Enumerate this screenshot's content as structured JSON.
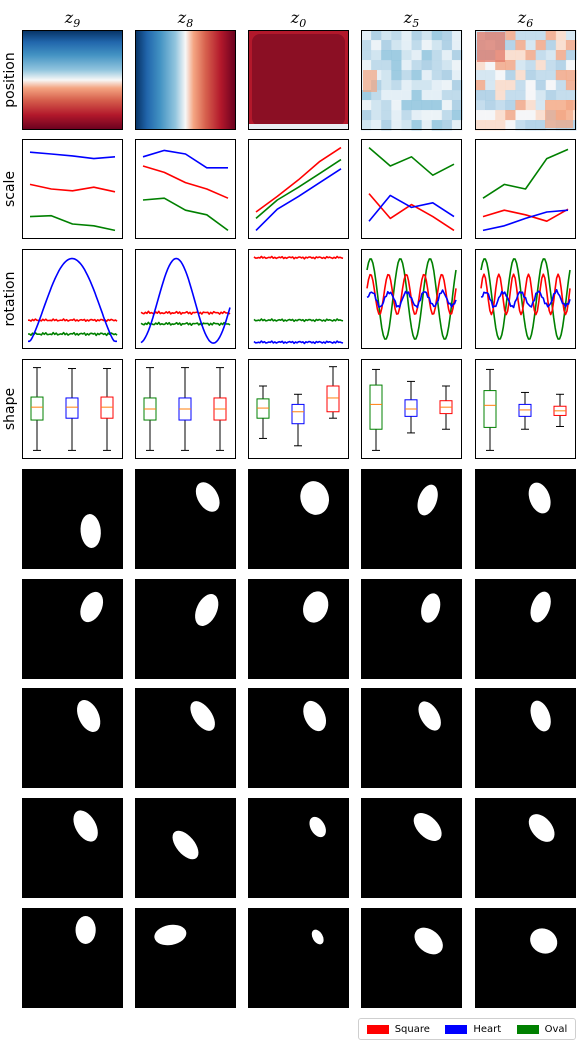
{
  "chart_data": {
    "type": "grid",
    "columns": [
      {
        "latent": "z",
        "subscript": "9"
      },
      {
        "latent": "z",
        "subscript": "8"
      },
      {
        "latent": "z",
        "subscript": "0"
      },
      {
        "latent": "z",
        "subscript": "5"
      },
      {
        "latent": "z",
        "subscript": "6"
      }
    ],
    "row_labels": [
      "position",
      "scale",
      "rotation",
      "shape"
    ],
    "colors": {
      "Square": "#ff0000",
      "Heart": "#0000ff",
      "Oval": "#008000"
    },
    "legend": {
      "placement": "bottom-right",
      "entries": [
        {
          "label": "Square",
          "color": "#ff0000"
        },
        {
          "label": "Heart",
          "color": "#0000ff"
        },
        {
          "label": "Oval",
          "color": "#008000"
        }
      ]
    },
    "position_heatmaps": [
      {
        "pattern": "vertical-gradient",
        "colormap": "RdBu"
      },
      {
        "pattern": "horizontal-gradient",
        "colormap": "RdBu"
      },
      {
        "pattern": "dark-red-square",
        "colormap": "RdBu"
      },
      {
        "pattern": "noisy-light-blue",
        "colormap": "RdBu"
      },
      {
        "pattern": "noisy-mixed",
        "colormap": "RdBu"
      }
    ],
    "scale_lines": [
      {
        "Heart": [
          0.9,
          0.88,
          0.86,
          0.83,
          0.85
        ],
        "Square": [
          0.55,
          0.5,
          0.48,
          0.52,
          0.47
        ],
        "Oval": [
          0.2,
          0.21,
          0.12,
          0.1,
          0.05
        ]
      },
      {
        "Heart": [
          0.85,
          0.92,
          0.88,
          0.73,
          0.73
        ],
        "Square": [
          0.75,
          0.68,
          0.57,
          0.5,
          0.4
        ],
        "Oval": [
          0.38,
          0.4,
          0.27,
          0.22,
          0.05
        ]
      },
      {
        "Heart": [
          0.05,
          0.28,
          0.42,
          0.57,
          0.72
        ],
        "Square": [
          0.25,
          0.42,
          0.6,
          0.8,
          0.95
        ],
        "Oval": [
          0.18,
          0.38,
          0.52,
          0.67,
          0.82
        ]
      },
      {
        "Heart": [
          0.15,
          0.43,
          0.3,
          0.35,
          0.2
        ],
        "Square": [
          0.45,
          0.18,
          0.33,
          0.2,
          0.05
        ],
        "Oval": [
          0.95,
          0.75,
          0.85,
          0.65,
          0.77
        ]
      },
      {
        "Heart": [
          0.05,
          0.1,
          0.18,
          0.25,
          0.27
        ],
        "Square": [
          0.2,
          0.27,
          0.22,
          0.15,
          0.28
        ],
        "Oval": [
          0.4,
          0.55,
          0.5,
          0.83,
          0.93
        ]
      }
    ],
    "rotation_lines": [
      {
        "kind": "hump",
        "Heart_peak": 0.94,
        "Square": 0.27,
        "Oval": 0.12
      },
      {
        "kind": "wave",
        "Heart_periods": 1.2,
        "Square": 0.35,
        "Oval": 0.23
      },
      {
        "kind": "flat",
        "Square": 0.95,
        "Oval": 0.27,
        "Heart": 0.03
      },
      {
        "kind": "oscillate",
        "Oval_periods": 3,
        "Square_periods": 5,
        "Heart_periods": 5
      },
      {
        "kind": "oscillate",
        "Oval_periods": 3,
        "Square_periods": 6,
        "Heart_periods": 5
      }
    ],
    "shape_boxes": [
      [
        {
          "series": "Oval",
          "whislo": 0.05,
          "q1": 0.38,
          "med": 0.52,
          "q3": 0.63,
          "whishi": 0.95
        },
        {
          "series": "Heart",
          "whislo": 0.05,
          "q1": 0.4,
          "med": 0.52,
          "q3": 0.62,
          "whishi": 0.94
        },
        {
          "series": "Square",
          "whislo": 0.05,
          "q1": 0.4,
          "med": 0.52,
          "q3": 0.63,
          "whishi": 0.94
        }
      ],
      [
        {
          "series": "Oval",
          "whislo": 0.05,
          "q1": 0.38,
          "med": 0.5,
          "q3": 0.62,
          "whishi": 0.95
        },
        {
          "series": "Heart",
          "whislo": 0.05,
          "q1": 0.38,
          "med": 0.5,
          "q3": 0.62,
          "whishi": 0.95
        },
        {
          "series": "Square",
          "whislo": 0.05,
          "q1": 0.38,
          "med": 0.5,
          "q3": 0.62,
          "whishi": 0.95
        }
      ],
      [
        {
          "series": "Oval",
          "whislo": 0.18,
          "q1": 0.4,
          "med": 0.51,
          "q3": 0.61,
          "whishi": 0.75
        },
        {
          "series": "Heart",
          "whislo": 0.1,
          "q1": 0.34,
          "med": 0.47,
          "q3": 0.55,
          "whishi": 0.66
        },
        {
          "series": "Square",
          "whislo": 0.4,
          "q1": 0.47,
          "med": 0.62,
          "q3": 0.75,
          "whishi": 0.96
        }
      ],
      [
        {
          "series": "Oval",
          "whislo": 0.05,
          "q1": 0.28,
          "med": 0.55,
          "q3": 0.76,
          "whishi": 0.93
        },
        {
          "series": "Heart",
          "whislo": 0.24,
          "q1": 0.42,
          "med": 0.5,
          "q3": 0.6,
          "whishi": 0.8
        },
        {
          "series": "Square",
          "whislo": 0.28,
          "q1": 0.45,
          "med": 0.52,
          "q3": 0.59,
          "whishi": 0.75
        }
      ],
      [
        {
          "series": "Oval",
          "whislo": 0.05,
          "q1": 0.3,
          "med": 0.54,
          "q3": 0.7,
          "whishi": 0.93
        },
        {
          "series": "Heart",
          "whislo": 0.28,
          "q1": 0.42,
          "med": 0.49,
          "q3": 0.55,
          "whishi": 0.68
        },
        {
          "series": "Square",
          "whislo": 0.31,
          "q1": 0.43,
          "med": 0.48,
          "q3": 0.53,
          "whishi": 0.66
        }
      ]
    ],
    "sample_rows": [
      [
        {
          "cx": 0.68,
          "cy": 0.62,
          "rx": 0.1,
          "ry": 0.17,
          "rot": -5
        },
        {
          "cx": 0.72,
          "cy": 0.28,
          "rx": 0.1,
          "ry": 0.16,
          "rot": -30
        },
        {
          "cx": 0.66,
          "cy": 0.29,
          "rx": 0.14,
          "ry": 0.17,
          "rot": -15
        },
        {
          "cx": 0.66,
          "cy": 0.31,
          "rx": 0.09,
          "ry": 0.16,
          "rot": 20
        },
        {
          "cx": 0.64,
          "cy": 0.29,
          "rx": 0.1,
          "ry": 0.16,
          "rot": -20
        }
      ],
      [
        {
          "cx": 0.69,
          "cy": 0.28,
          "rx": 0.1,
          "ry": 0.16,
          "rot": 25
        },
        {
          "cx": 0.71,
          "cy": 0.31,
          "rx": 0.1,
          "ry": 0.17,
          "rot": 25
        },
        {
          "cx": 0.67,
          "cy": 0.28,
          "rx": 0.12,
          "ry": 0.16,
          "rot": 20
        },
        {
          "cx": 0.69,
          "cy": 0.29,
          "rx": 0.09,
          "ry": 0.15,
          "rot": 15
        },
        {
          "cx": 0.65,
          "cy": 0.28,
          "rx": 0.09,
          "ry": 0.16,
          "rot": 20
        }
      ],
      [
        {
          "cx": 0.66,
          "cy": 0.28,
          "rx": 0.1,
          "ry": 0.17,
          "rot": -25
        },
        {
          "cx": 0.67,
          "cy": 0.28,
          "rx": 0.09,
          "ry": 0.17,
          "rot": -35
        },
        {
          "cx": 0.66,
          "cy": 0.28,
          "rx": 0.1,
          "ry": 0.16,
          "rot": -25
        },
        {
          "cx": 0.68,
          "cy": 0.28,
          "rx": 0.09,
          "ry": 0.16,
          "rot": -30
        },
        {
          "cx": 0.65,
          "cy": 0.28,
          "rx": 0.09,
          "ry": 0.16,
          "rot": -20
        }
      ],
      [
        {
          "cx": 0.63,
          "cy": 0.28,
          "rx": 0.1,
          "ry": 0.17,
          "rot": -30
        },
        {
          "cx": 0.5,
          "cy": 0.47,
          "rx": 0.09,
          "ry": 0.17,
          "rot": -40
        },
        {
          "cx": 0.69,
          "cy": 0.29,
          "rx": 0.07,
          "ry": 0.11,
          "rot": -30
        },
        {
          "cx": 0.66,
          "cy": 0.29,
          "rx": 0.1,
          "ry": 0.17,
          "rot": -45
        },
        {
          "cx": 0.66,
          "cy": 0.3,
          "rx": 0.1,
          "ry": 0.16,
          "rot": -40
        }
      ],
      [
        {
          "cx": 0.63,
          "cy": 0.22,
          "rx": 0.1,
          "ry": 0.14,
          "rot": 0
        },
        {
          "cx": 0.35,
          "cy": 0.27,
          "rx": 0.16,
          "ry": 0.1,
          "rot": -10
        },
        {
          "cx": 0.69,
          "cy": 0.29,
          "rx": 0.05,
          "ry": 0.08,
          "rot": -30
        },
        {
          "cx": 0.67,
          "cy": 0.33,
          "rx": 0.11,
          "ry": 0.16,
          "rot": -50
        },
        {
          "cx": 0.68,
          "cy": 0.33,
          "rx": 0.12,
          "ry": 0.14,
          "rot": -60
        }
      ]
    ]
  }
}
